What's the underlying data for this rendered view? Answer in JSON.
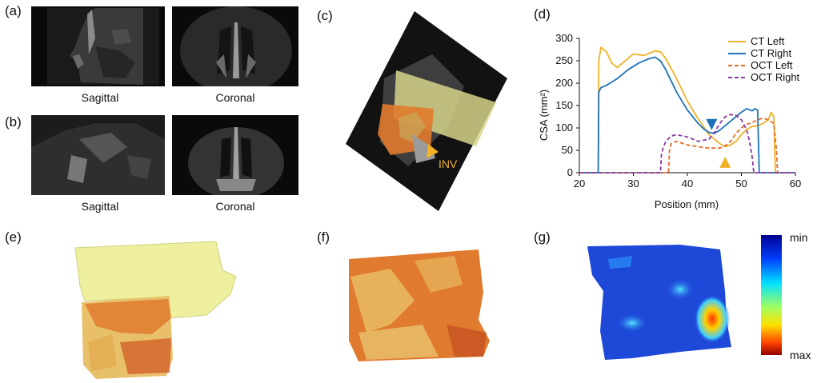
{
  "panels": {
    "a": {
      "label": "(a)",
      "captions": [
        "Sagittal",
        "Coronal"
      ]
    },
    "b": {
      "label": "(b)",
      "captions": [
        "Sagittal",
        "Coronal"
      ]
    },
    "c": {
      "label": "(c)",
      "annotation": "INV"
    },
    "d": {
      "label": "(d)"
    },
    "e": {
      "label": "(e)"
    },
    "f": {
      "label": "(f)"
    },
    "g": {
      "label": "(g)",
      "colorbar_min": "min",
      "colorbar_max": "max"
    }
  },
  "colors": {
    "ct_left": "#f0b128",
    "ct_right": "#1f72b8",
    "oct_left": "#e86a28",
    "oct_right": "#8a3aa0",
    "marker_blue": "#1f72b8",
    "marker_orange": "#f0b128"
  },
  "chart_data": {
    "type": "line",
    "xlabel": "Position (mm)",
    "ylabel": "CSA (mm²)",
    "xlim": [
      20,
      60
    ],
    "ylim": [
      0,
      300
    ],
    "xticks": [
      "20",
      "30",
      "40",
      "50",
      "60"
    ],
    "yticks": [
      "0",
      "50",
      "100",
      "150",
      "200",
      "250",
      "300"
    ],
    "legend_position": "top-right",
    "series": [
      {
        "name": "CT Left",
        "style": "solid",
        "x": [
          20,
          23.5,
          23.6,
          24,
          25,
          26,
          27,
          28,
          30,
          32,
          34,
          35,
          36,
          38,
          40,
          42,
          44,
          46,
          47,
          48,
          49,
          50,
          51,
          52,
          53,
          54,
          55,
          55.5,
          56,
          56.3,
          60
        ],
        "y": [
          0,
          0,
          250,
          280,
          270,
          245,
          235,
          245,
          265,
          262,
          272,
          270,
          255,
          210,
          160,
          120,
          85,
          65,
          58,
          62,
          70,
          85,
          97,
          103,
          105,
          110,
          118,
          135,
          125,
          0,
          0
        ]
      },
      {
        "name": "CT Right",
        "style": "solid",
        "x": [
          20,
          23.5,
          23.6,
          24,
          25,
          27,
          29,
          31,
          33,
          34,
          35,
          36,
          38,
          40,
          42,
          43,
          44,
          45,
          46,
          47,
          48,
          49,
          50,
          51,
          52,
          52.5,
          53,
          53.3,
          53.4,
          60
        ],
        "y": [
          0,
          0,
          180,
          190,
          195,
          210,
          230,
          245,
          255,
          258,
          250,
          230,
          180,
          140,
          110,
          98,
          90,
          88,
          95,
          105,
          115,
          125,
          135,
          143,
          138,
          143,
          140,
          0,
          0,
          0
        ]
      },
      {
        "name": "OCT Left",
        "style": "dashed",
        "x": [
          20,
          36.5,
          36.7,
          37,
          38,
          40,
          42,
          44,
          46,
          47,
          48,
          49,
          50,
          51,
          52,
          53,
          54,
          55,
          56,
          56.5,
          56.7,
          60
        ],
        "y": [
          0,
          0,
          50,
          65,
          70,
          62,
          58,
          55,
          55,
          60,
          70,
          88,
          100,
          108,
          112,
          118,
          122,
          118,
          110,
          50,
          0,
          0
        ]
      },
      {
        "name": "OCT Right",
        "style": "dashed",
        "x": [
          20,
          35,
          35.2,
          35.5,
          36,
          37,
          38,
          40,
          42,
          44,
          45,
          46,
          47,
          48,
          49,
          50,
          51,
          51.5,
          52,
          52.3,
          60
        ],
        "y": [
          0,
          0,
          40,
          55,
          70,
          82,
          85,
          80,
          70,
          75,
          90,
          110,
          125,
          130,
          128,
          118,
          95,
          70,
          35,
          0,
          0
        ]
      }
    ],
    "markers": [
      {
        "series": "CT Right",
        "x": 44.5,
        "y": 95,
        "direction": "down"
      },
      {
        "series": "CT Left",
        "x": 47,
        "y": 18,
        "direction": "up"
      }
    ]
  }
}
